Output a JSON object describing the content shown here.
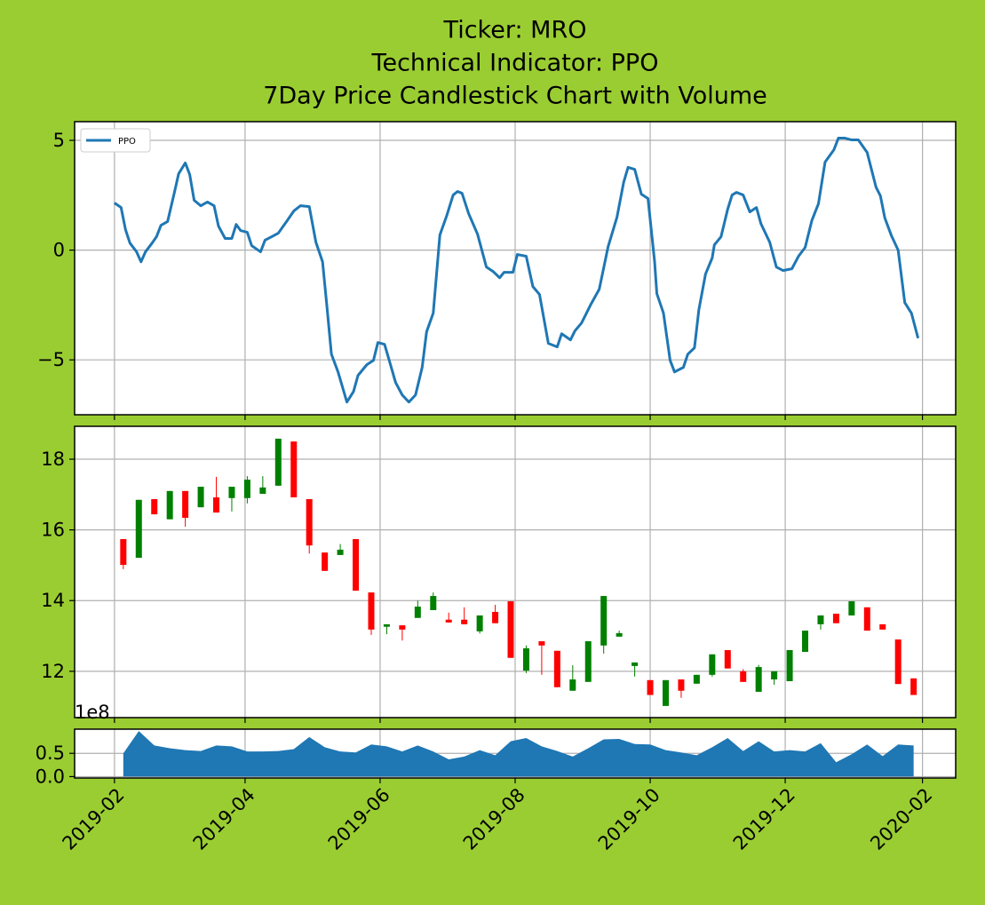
{
  "title": [
    "Ticker: MRO",
    "Technical Indicator: PPO",
    "7Day Price Candlestick Chart with Volume"
  ],
  "chart_data": [
    {
      "type": "line",
      "x": [
        "2019-02-01",
        "2019-02-04",
        "2019-02-06",
        "2019-02-08",
        "2019-02-11",
        "2019-02-13",
        "2019-02-15",
        "2019-02-18",
        "2019-02-20",
        "2019-02-22",
        "2019-02-25",
        "2019-02-28",
        "2019-03-02",
        "2019-03-05",
        "2019-03-07",
        "2019-03-09",
        "2019-03-12",
        "2019-03-15",
        "2019-03-18",
        "2019-03-20",
        "2019-03-23",
        "2019-03-26",
        "2019-03-28",
        "2019-03-30",
        "2019-04-02",
        "2019-04-04",
        "2019-04-08",
        "2019-04-10",
        "2019-04-13",
        "2019-04-16",
        "2019-04-20",
        "2019-04-23",
        "2019-04-26",
        "2019-04-30",
        "2019-05-03",
        "2019-05-06",
        "2019-05-08",
        "2019-05-10",
        "2019-05-13",
        "2019-05-17",
        "2019-05-20",
        "2019-05-22",
        "2019-05-26",
        "2019-05-29",
        "2019-05-31",
        "2019-06-03",
        "2019-06-05",
        "2019-06-08",
        "2019-06-11",
        "2019-06-14",
        "2019-06-17",
        "2019-06-20",
        "2019-06-22",
        "2019-06-25",
        "2019-06-28",
        "2019-07-01",
        "2019-07-04",
        "2019-07-06",
        "2019-07-08",
        "2019-07-11",
        "2019-07-15",
        "2019-07-19",
        "2019-07-22",
        "2019-07-25",
        "2019-07-27",
        "2019-07-31",
        "2019-08-02",
        "2019-08-06",
        "2019-08-09",
        "2019-08-12",
        "2019-08-16",
        "2019-08-20",
        "2019-08-22",
        "2019-08-26",
        "2019-08-28",
        "2019-08-31",
        "2019-09-04",
        "2019-09-08",
        "2019-09-12",
        "2019-09-16",
        "2019-09-19",
        "2019-09-21",
        "2019-09-24",
        "2019-09-27",
        "2019-09-30",
        "2019-10-03",
        "2019-10-04",
        "2019-10-07",
        "2019-10-10",
        "2019-10-12",
        "2019-10-16",
        "2019-10-18",
        "2019-10-21",
        "2019-10-23",
        "2019-10-26",
        "2019-10-29",
        "2019-10-30",
        "2019-11-02",
        "2019-11-05",
        "2019-11-07",
        "2019-11-09",
        "2019-11-12",
        "2019-11-15",
        "2019-11-18",
        "2019-11-20",
        "2019-11-24",
        "2019-11-27",
        "2019-11-30",
        "2019-12-04",
        "2019-12-07",
        "2019-12-10",
        "2019-12-13",
        "2019-12-16",
        "2019-12-19",
        "2019-12-23",
        "2019-12-25",
        "2019-12-28",
        "2019-12-31",
        "2020-01-03",
        "2020-01-07",
        "2020-01-11",
        "2020-01-13",
        "2020-01-15",
        "2020-01-18",
        "2020-01-21",
        "2020-01-24",
        "2020-01-27",
        "2020-01-30"
      ],
      "series": [
        {
          "name": "PPO",
          "color": "#1f77b4",
          "values": [
            2.15,
            1.94,
            0.93,
            0.32,
            -0.08,
            -0.53,
            -0.08,
            0.32,
            0.61,
            1.13,
            1.3,
            2.59,
            3.48,
            3.97,
            3.44,
            2.27,
            2.02,
            2.19,
            2.02,
            1.09,
            0.53,
            0.53,
            1.17,
            0.89,
            0.81,
            0.2,
            -0.08,
            0.45,
            0.61,
            0.77,
            1.34,
            1.78,
            2.02,
            1.98,
            0.36,
            -0.53,
            -2.59,
            -4.74,
            -5.55,
            -6.92,
            -6.44,
            -5.71,
            -5.22,
            -5.02,
            -4.21,
            -4.29,
            -4.98,
            -6.03,
            -6.6,
            -6.92,
            -6.6,
            -5.34,
            -3.72,
            -2.87,
            0.69,
            1.54,
            2.51,
            2.67,
            2.59,
            1.66,
            0.73,
            -0.77,
            -0.97,
            -1.26,
            -1.01,
            -1.01,
            -0.2,
            -0.28,
            -1.66,
            -2.02,
            -4.25,
            -4.41,
            -3.81,
            -4.09,
            -3.68,
            -3.32,
            -2.51,
            -1.78,
            0.16,
            1.5,
            3.08,
            3.77,
            3.68,
            2.55,
            2.35,
            -0.53,
            -1.98,
            -2.87,
            -5.02,
            -5.55,
            -5.34,
            -4.74,
            -4.45,
            -2.71,
            -1.09,
            -0.36,
            0.24,
            0.61,
            1.86,
            2.51,
            2.63,
            2.51,
            1.74,
            1.94,
            1.21,
            0.36,
            -0.77,
            -0.93,
            -0.85,
            -0.28,
            0.12,
            1.34,
            2.11,
            4.01,
            4.57,
            5.1,
            5.1,
            5.02,
            5.02,
            4.45,
            2.87,
            2.47,
            1.46,
            0.65,
            0,
            -2.39,
            -2.87,
            -4.01
          ]
        }
      ],
      "ylim": [
        -7.5,
        5.85
      ],
      "yticks": [
        {
          "value": -5,
          "label": "−5"
        },
        0,
        5
      ],
      "grid": true,
      "legend": "upper left"
    },
    {
      "type": "candlestick",
      "x": [
        "2019-02-05",
        "2019-02-12",
        "2019-02-19",
        "2019-02-26",
        "2019-03-05",
        "2019-03-12",
        "2019-03-19",
        "2019-03-26",
        "2019-04-02",
        "2019-04-09",
        "2019-04-16",
        "2019-04-23",
        "2019-04-30",
        "2019-05-07",
        "2019-05-14",
        "2019-05-21",
        "2019-05-28",
        "2019-06-04",
        "2019-06-11",
        "2019-06-18",
        "2019-06-25",
        "2019-07-02",
        "2019-07-09",
        "2019-07-16",
        "2019-07-23",
        "2019-07-30",
        "2019-08-06",
        "2019-08-13",
        "2019-08-20",
        "2019-08-27",
        "2019-09-03",
        "2019-09-10",
        "2019-09-17",
        "2019-09-24",
        "2019-10-01",
        "2019-10-08",
        "2019-10-15",
        "2019-10-22",
        "2019-10-29",
        "2019-11-05",
        "2019-11-12",
        "2019-11-19",
        "2019-11-26",
        "2019-12-03",
        "2019-12-10",
        "2019-12-17",
        "2019-12-24",
        "2019-12-31",
        "2020-01-07",
        "2020-01-14",
        "2020-01-21",
        "2020-01-28"
      ],
      "open": [
        15.74,
        15.21,
        16.87,
        16.3,
        17.1,
        16.64,
        16.92,
        16.9,
        16.9,
        17.02,
        17.25,
        18.5,
        16.87,
        15.36,
        15.29,
        15.74,
        14.23,
        13.26,
        13.3,
        13.51,
        13.73,
        13.46,
        13.46,
        13.13,
        13.68,
        13.98,
        12.02,
        12.85,
        12.58,
        11.45,
        11.7,
        12.73,
        12.98,
        12.15,
        11.75,
        11.02,
        11.77,
        11.65,
        11.9,
        12.6,
        12.0,
        11.42,
        11.77,
        11.72,
        12.55,
        13.33,
        13.63,
        13.58,
        13.81,
        13.33,
        12.9,
        11.8
      ],
      "high": [
        15.74,
        16.85,
        16.87,
        17.1,
        17.1,
        17.22,
        17.5,
        17.22,
        17.52,
        17.52,
        18.58,
        18.5,
        16.87,
        15.36,
        15.6,
        15.74,
        14.23,
        13.33,
        13.3,
        14.0,
        14.23,
        13.66,
        13.81,
        13.58,
        13.88,
        13.98,
        12.73,
        12.85,
        12.58,
        12.17,
        12.85,
        14.13,
        13.15,
        12.25,
        11.75,
        11.75,
        11.77,
        11.9,
        12.48,
        12.6,
        12.06,
        12.18,
        12.0,
        12.6,
        13.15,
        13.58,
        13.63,
        13.98,
        13.81,
        13.33,
        12.9,
        11.8
      ],
      "low": [
        14.89,
        15.21,
        16.44,
        16.3,
        16.09,
        16.64,
        16.49,
        16.52,
        16.75,
        17.02,
        17.25,
        16.92,
        15.33,
        14.84,
        15.29,
        14.28,
        13.03,
        13.05,
        12.87,
        13.51,
        13.73,
        13.38,
        13.33,
        13.07,
        13.36,
        12.38,
        11.95,
        11.9,
        11.55,
        11.45,
        11.7,
        12.5,
        12.98,
        11.85,
        11.33,
        11.02,
        11.25,
        11.65,
        11.85,
        12.08,
        11.7,
        11.42,
        11.62,
        11.72,
        12.55,
        13.18,
        13.36,
        13.58,
        13.15,
        13.18,
        11.64,
        11.33
      ],
      "close": [
        15.01,
        16.85,
        16.44,
        17.1,
        16.34,
        17.22,
        16.49,
        17.22,
        17.42,
        17.2,
        18.58,
        16.92,
        15.56,
        14.84,
        15.44,
        14.28,
        13.18,
        13.33,
        13.18,
        13.83,
        14.13,
        13.38,
        13.33,
        13.58,
        13.36,
        12.38,
        12.65,
        12.73,
        11.55,
        11.77,
        12.85,
        14.13,
        13.08,
        12.25,
        11.33,
        11.75,
        11.45,
        11.9,
        12.48,
        12.08,
        11.7,
        12.12,
        12.0,
        12.6,
        13.15,
        13.58,
        13.36,
        13.98,
        13.15,
        13.18,
        11.64,
        11.33
      ],
      "up_color": "#008000",
      "down_color": "#ff0000",
      "ylim": [
        10.69,
        18.93
      ],
      "yticks": [
        12,
        14,
        16,
        18
      ],
      "grid": true
    },
    {
      "type": "area",
      "x": [
        "2019-02-05",
        "2019-02-12",
        "2019-02-19",
        "2019-02-26",
        "2019-03-05",
        "2019-03-12",
        "2019-03-19",
        "2019-03-26",
        "2019-04-02",
        "2019-04-09",
        "2019-04-16",
        "2019-04-23",
        "2019-04-30",
        "2019-05-07",
        "2019-05-14",
        "2019-05-21",
        "2019-05-28",
        "2019-06-04",
        "2019-06-11",
        "2019-06-18",
        "2019-06-25",
        "2019-07-02",
        "2019-07-09",
        "2019-07-16",
        "2019-07-23",
        "2019-07-30",
        "2019-08-06",
        "2019-08-13",
        "2019-08-20",
        "2019-08-27",
        "2019-09-03",
        "2019-09-10",
        "2019-09-17",
        "2019-09-24",
        "2019-10-01",
        "2019-10-08",
        "2019-10-15",
        "2019-10-22",
        "2019-10-29",
        "2019-11-05",
        "2019-11-12",
        "2019-11-19",
        "2019-11-26",
        "2019-12-03",
        "2019-12-10",
        "2019-12-17",
        "2019-12-24",
        "2019-12-31",
        "2020-01-07",
        "2020-01-14",
        "2020-01-21",
        "2020-01-28"
      ],
      "values": [
        0.5,
        0.98,
        0.67,
        0.61,
        0.57,
        0.55,
        0.67,
        0.65,
        0.54,
        0.54,
        0.55,
        0.59,
        0.85,
        0.63,
        0.54,
        0.52,
        0.69,
        0.65,
        0.54,
        0.67,
        0.54,
        0.37,
        0.43,
        0.57,
        0.46,
        0.76,
        0.83,
        0.65,
        0.55,
        0.43,
        0.61,
        0.8,
        0.81,
        0.7,
        0.69,
        0.57,
        0.52,
        0.46,
        0.63,
        0.83,
        0.55,
        0.76,
        0.54,
        0.57,
        0.54,
        0.72,
        0.31,
        0.48,
        0.69,
        0.44,
        0.69,
        0.67
      ],
      "color": "#1f77b4",
      "offset_label": "1e8",
      "ylim": [
        -0.03,
        1.02
      ],
      "yticks": [
        {
          "value": 0,
          "label": "0.0"
        },
        0.5
      ],
      "grid": true,
      "xlim": [
        "2019-01-14",
        "2020-02-16"
      ],
      "xticks": [
        {
          "value": "2019-02-01",
          "label": "2019-02"
        },
        {
          "value": "2019-04-01",
          "label": "2019-04"
        },
        {
          "value": "2019-06-01",
          "label": "2019-06"
        },
        {
          "value": "2019-08-01",
          "label": "2019-08"
        },
        {
          "value": "2019-10-01",
          "label": "2019-10"
        },
        {
          "value": "2019-12-01",
          "label": "2019-12"
        },
        {
          "value": "2020-02-01",
          "label": "2020-02"
        }
      ]
    }
  ]
}
